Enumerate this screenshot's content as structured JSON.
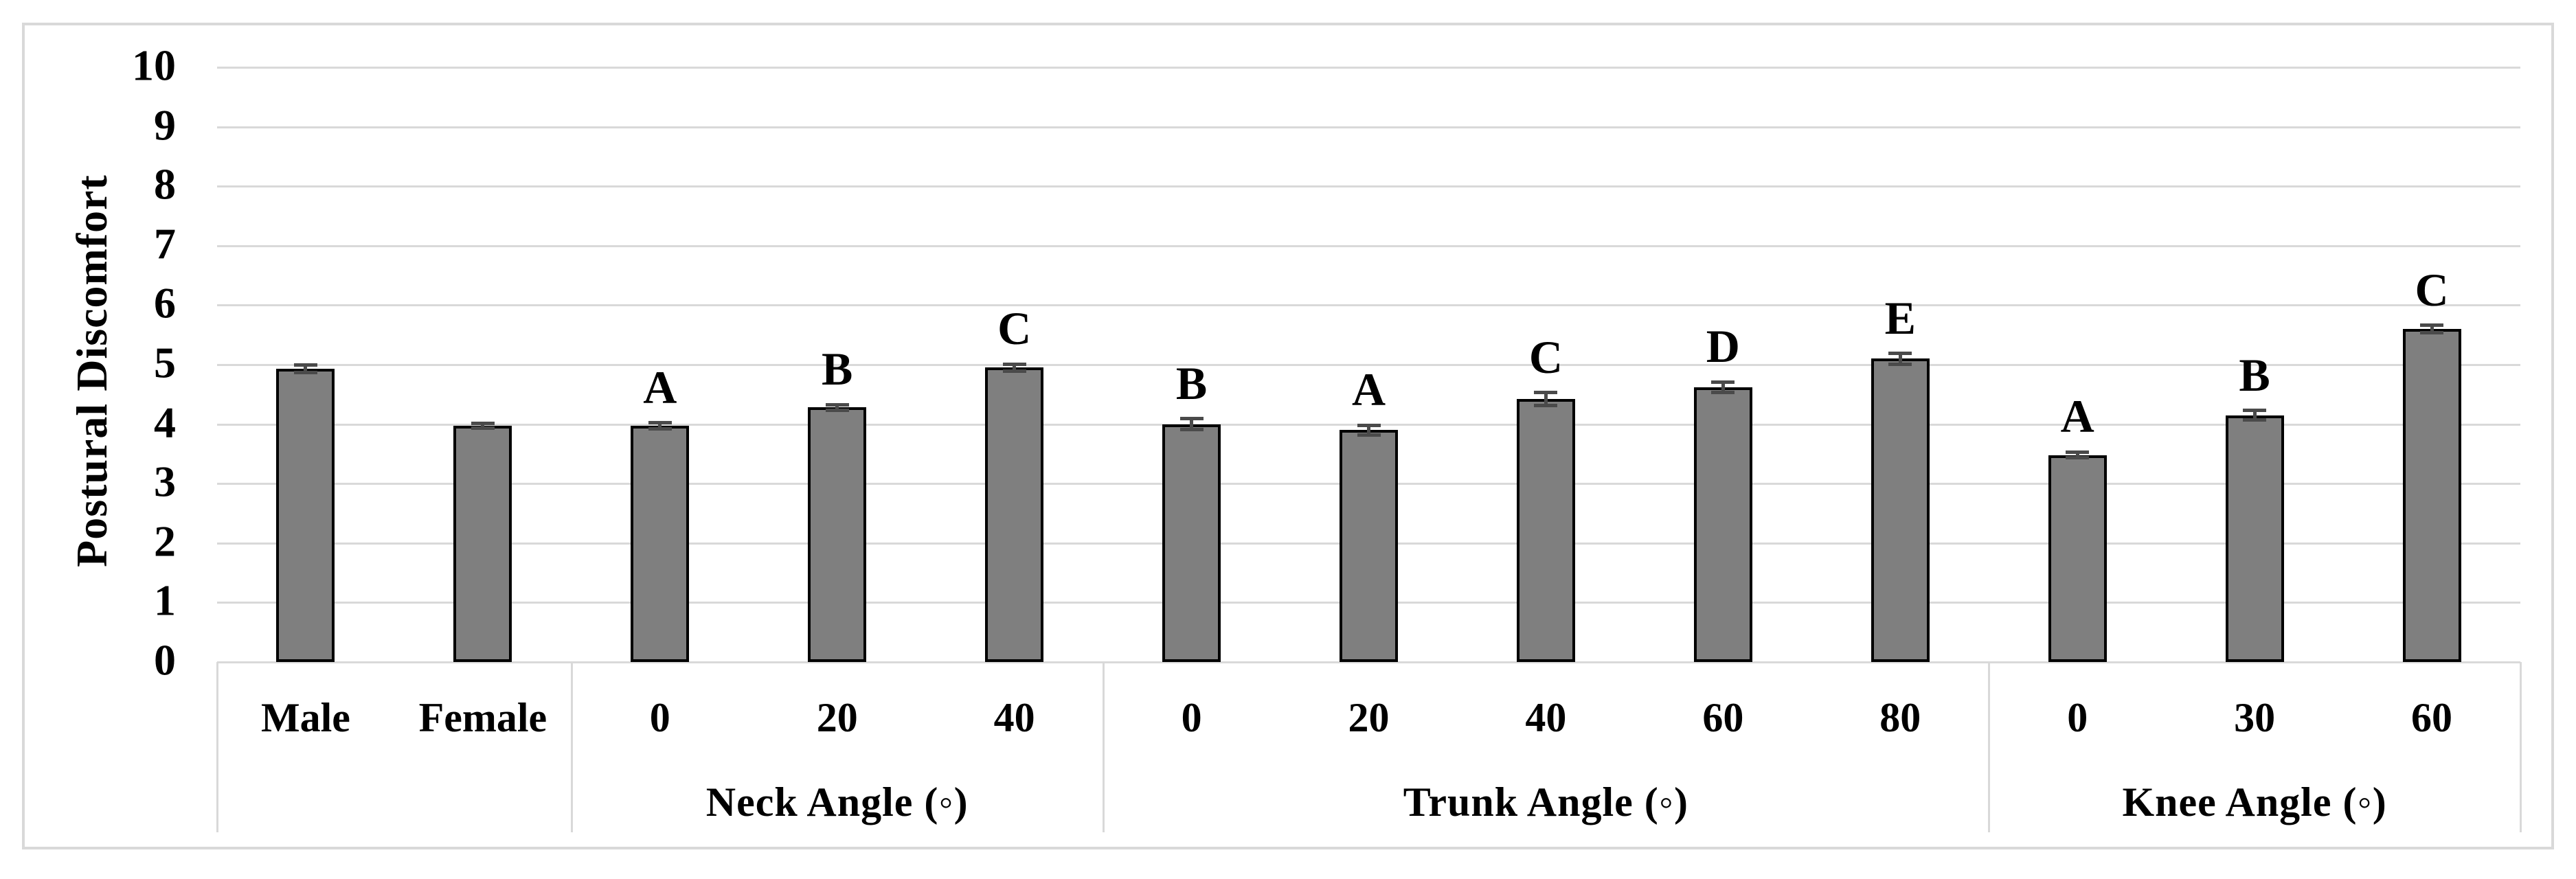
{
  "figure": {
    "ylabel": "Postural Discomfort",
    "colors": {
      "bar_fill": "#7f7f7f",
      "bar_border": "#000000",
      "gridline": "#d9d9d9",
      "frame_border": "#d9d9d9",
      "error_bar": "#4a4a4a",
      "text": "#000000",
      "background": "#ffffff"
    }
  },
  "chart_data": {
    "type": "bar",
    "title": "",
    "xlabel": "",
    "ylabel": "Postural Discomfort",
    "ylim": [
      0,
      10
    ],
    "yticks": [
      0,
      1,
      2,
      3,
      4,
      5,
      6,
      7,
      8,
      9,
      10
    ],
    "grid": true,
    "legend": "none",
    "bar_color": "#7f7f7f",
    "groups": [
      {
        "label": "",
        "categories": [
          "Male",
          "Female"
        ],
        "values": [
          4.93,
          3.97
        ],
        "errors": [
          0.06,
          0.04
        ],
        "letters": [
          "",
          ""
        ]
      },
      {
        "label": "Neck Angle (◦)",
        "categories": [
          "0",
          "20",
          "40"
        ],
        "values": [
          3.97,
          4.28,
          4.95
        ],
        "errors": [
          0.05,
          0.05,
          0.06
        ],
        "letters": [
          "A",
          "B",
          "C"
        ]
      },
      {
        "label": "Trunk Angle (◦)",
        "categories": [
          "0",
          "20",
          "40",
          "60",
          "80"
        ],
        "values": [
          4.0,
          3.9,
          4.42,
          4.62,
          5.1
        ],
        "errors": [
          0.09,
          0.08,
          0.11,
          0.09,
          0.09
        ],
        "letters": [
          "B",
          "A",
          "C",
          "D",
          "E"
        ]
      },
      {
        "label": "Knee Angle (◦)",
        "categories": [
          "0",
          "30",
          "60"
        ],
        "values": [
          3.48,
          4.15,
          5.6
        ],
        "errors": [
          0.05,
          0.08,
          0.06
        ],
        "letters": [
          "A",
          "B",
          "C"
        ]
      }
    ]
  }
}
